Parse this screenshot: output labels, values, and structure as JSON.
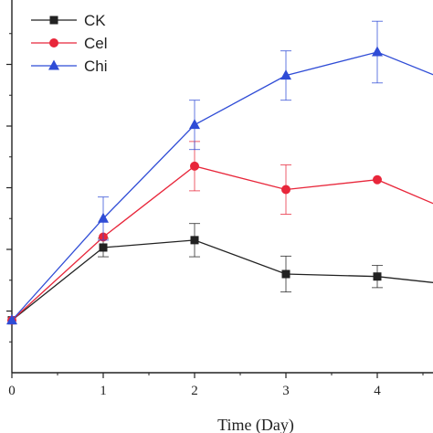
{
  "chart_data": {
    "type": "line",
    "xlabel": "Time (Day)",
    "ylabel": "",
    "x": [
      0,
      1,
      2,
      3,
      4,
      5
    ],
    "x_ticks": [
      "0",
      "1",
      "2",
      "3",
      "4"
    ],
    "xlim": [
      0,
      4.6
    ],
    "ylim": [
      0,
      6
    ],
    "y_tick_values": [
      1,
      2,
      3,
      4,
      5
    ],
    "grid": false,
    "legend_position": "top-left",
    "series": [
      {
        "name": "CK",
        "marker": "square",
        "color": "#222222",
        "values": [
          0.85,
          2.03,
          2.15,
          1.6,
          1.56,
          1.4
        ],
        "errors": [
          0.0,
          0.15,
          0.27,
          0.29,
          0.18,
          0.0
        ]
      },
      {
        "name": "Cel",
        "marker": "circle",
        "color": "#e8263a",
        "values": [
          0.85,
          2.2,
          3.35,
          2.97,
          3.13,
          2.5
        ],
        "errors": [
          0.0,
          0.0,
          0.4,
          0.4,
          0.0,
          0.0
        ]
      },
      {
        "name": "Chi",
        "marker": "triangle",
        "color": "#2f4cd6",
        "values": [
          0.85,
          2.5,
          4.02,
          4.82,
          5.2,
          4.6
        ],
        "errors": [
          0.0,
          0.35,
          0.4,
          0.4,
          0.5,
          0.0
        ]
      }
    ]
  }
}
